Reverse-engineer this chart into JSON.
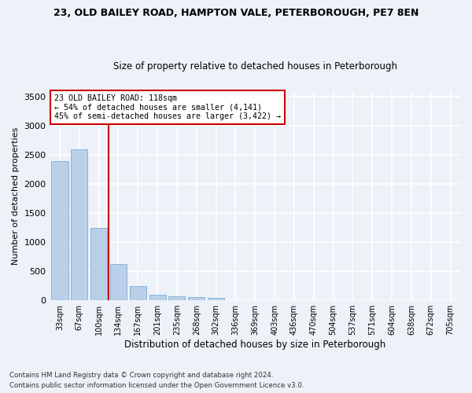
{
  "title1": "23, OLD BAILEY ROAD, HAMPTON VALE, PETERBOROUGH, PE7 8EN",
  "title2": "Size of property relative to detached houses in Peterborough",
  "xlabel": "Distribution of detached houses by size in Peterborough",
  "ylabel": "Number of detached properties",
  "categories": [
    "33sqm",
    "67sqm",
    "100sqm",
    "134sqm",
    "167sqm",
    "201sqm",
    "235sqm",
    "268sqm",
    "302sqm",
    "336sqm",
    "369sqm",
    "403sqm",
    "436sqm",
    "470sqm",
    "504sqm",
    "537sqm",
    "571sqm",
    "604sqm",
    "638sqm",
    "672sqm",
    "705sqm"
  ],
  "values": [
    2400,
    2600,
    1250,
    625,
    250,
    100,
    65,
    55,
    45,
    0,
    0,
    0,
    0,
    0,
    0,
    0,
    0,
    0,
    0,
    0,
    0
  ],
  "bar_color": "#bad0e8",
  "bar_edge_color": "#7aabd4",
  "vline_color": "#cc0000",
  "annotation_text": "23 OLD BAILEY ROAD: 118sqm\n← 54% of detached houses are smaller (4,141)\n45% of semi-detached houses are larger (3,422) →",
  "annotation_box_color": "white",
  "annotation_box_edge": "#cc0000",
  "ylim": [
    0,
    3600
  ],
  "yticks": [
    0,
    500,
    1000,
    1500,
    2000,
    2500,
    3000,
    3500
  ],
  "footnote1": "Contains HM Land Registry data © Crown copyright and database right 2024.",
  "footnote2": "Contains public sector information licensed under the Open Government Licence v3.0.",
  "bg_color": "#edf2f9",
  "grid_color": "white"
}
